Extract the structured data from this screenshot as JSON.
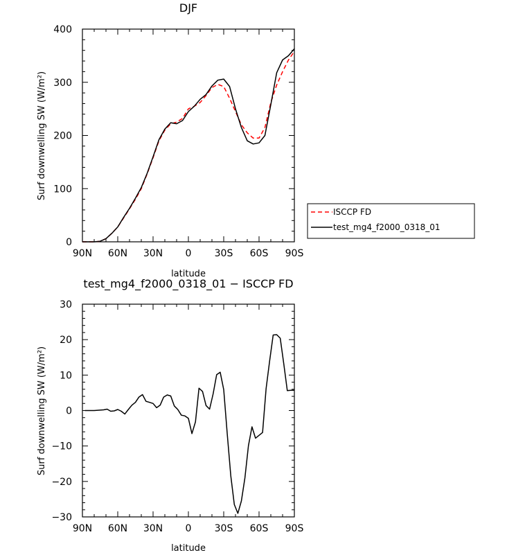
{
  "charts": [
    {
      "type": "line",
      "title": "DJF",
      "xlabel": "latitude",
      "ylabel": "Surf downwelling SW (W/m²)",
      "xlim": [
        -90,
        90
      ],
      "ylim": [
        0,
        400
      ],
      "x_ticks": [
        -90,
        -60,
        -30,
        0,
        30,
        60,
        90
      ],
      "x_tick_labels": [
        "90N",
        "60N",
        "30N",
        "0",
        "30S",
        "60S",
        "90S"
      ],
      "y_ticks": [
        0,
        100,
        200,
        300,
        400
      ],
      "y_tick_labels": [
        "0",
        "100",
        "200",
        "300",
        "400"
      ],
      "legend": [
        "ISCCP FD",
        "test_mg4_f2000_0318_01"
      ],
      "series": [
        {
          "name": "ISCCP FD",
          "color": "#ff0000",
          "dash": "6,4",
          "x": [
            -90,
            -85,
            -80,
            -75,
            -70,
            -65,
            -60,
            -55,
            -50,
            -45,
            -40,
            -35,
            -30,
            -25,
            -20,
            -15,
            -10,
            -5,
            0,
            5,
            10,
            15,
            20,
            25,
            30,
            35,
            40,
            45,
            50,
            55,
            60,
            65,
            70,
            75,
            80,
            85,
            90
          ],
          "y": [
            0,
            0,
            0,
            1,
            6,
            16,
            28,
            45,
            62,
            80,
            100,
            128,
            158,
            190,
            210,
            222,
            225,
            232,
            250,
            255,
            262,
            275,
            290,
            296,
            292,
            270,
            245,
            220,
            205,
            195,
            195,
            215,
            262,
            295,
            320,
            342,
            358
          ]
        },
        {
          "name": "test_mg4_f2000_0318_01",
          "color": "#000000",
          "dash": "",
          "x": [
            -90,
            -85,
            -80,
            -75,
            -70,
            -65,
            -60,
            -55,
            -50,
            -45,
            -40,
            -35,
            -30,
            -25,
            -20,
            -15,
            -10,
            -5,
            0,
            5,
            10,
            15,
            20,
            25,
            30,
            35,
            40,
            45,
            50,
            55,
            60,
            65,
            70,
            75,
            80,
            85,
            90
          ],
          "y": [
            0,
            0,
            0,
            1,
            6,
            16,
            28,
            46,
            63,
            82,
            102,
            129,
            160,
            192,
            212,
            224,
            222,
            228,
            245,
            255,
            268,
            277,
            293,
            304,
            306,
            292,
            250,
            215,
            190,
            184,
            186,
            200,
            258,
            318,
            342,
            350,
            363
          ]
        }
      ]
    },
    {
      "type": "line",
      "title": "test_mg4_f2000_0318_01 − ISCCP FD",
      "xlabel": "latitude",
      "ylabel": "Surf downwelling SW (W/m²)",
      "xlim": [
        -90,
        90
      ],
      "ylim": [
        -30,
        30
      ],
      "x_ticks": [
        -90,
        -60,
        -30,
        0,
        30,
        60,
        90
      ],
      "x_tick_labels": [
        "90N",
        "60N",
        "30N",
        "0",
        "30S",
        "60S",
        "90S"
      ],
      "y_ticks": [
        -30,
        -20,
        -10,
        0,
        10,
        20,
        30
      ],
      "y_tick_labels": [
        "−30",
        "−20",
        "−10",
        "0",
        "10",
        "20",
        "30"
      ],
      "series": [
        {
          "name": "",
          "color": "#000000",
          "dash": "",
          "x": [
            -88,
            -80,
            -72,
            -69,
            -66,
            -63,
            -60,
            -57,
            -54,
            -51,
            -48,
            -45,
            -42,
            -39,
            -36,
            -33,
            -30,
            -27,
            -24,
            -21,
            -18,
            -15,
            -12,
            -9,
            -6,
            -3,
            0,
            3,
            6,
            9,
            12,
            15,
            18,
            21,
            24,
            27,
            30,
            33,
            36,
            39,
            42,
            45,
            48,
            51,
            54,
            57,
            60,
            63,
            66,
            69,
            72,
            75,
            78,
            81,
            84,
            87,
            90
          ],
          "y": [
            0,
            0,
            0.2,
            0.4,
            -0.2,
            -0.1,
            0.3,
            -0.2,
            -1.0,
            0.3,
            1.5,
            2.3,
            3.8,
            4.5,
            2.6,
            2.3,
            2.0,
            0.8,
            1.5,
            3.8,
            4.4,
            4.1,
            1.3,
            0.3,
            -1.3,
            -1.5,
            -2.2,
            -6.5,
            -3.2,
            6.3,
            5.4,
            1.4,
            0.4,
            4.7,
            10.1,
            10.8,
            5.9,
            -6.6,
            -18.4,
            -26.5,
            -29.0,
            -25.5,
            -19.0,
            -9.9,
            -4.6,
            -7.8,
            -7.0,
            -6.2,
            6.2,
            14.0,
            21.3,
            21.4,
            20.4,
            13.2,
            5.6,
            5.7,
            5.7
          ]
        }
      ]
    }
  ]
}
